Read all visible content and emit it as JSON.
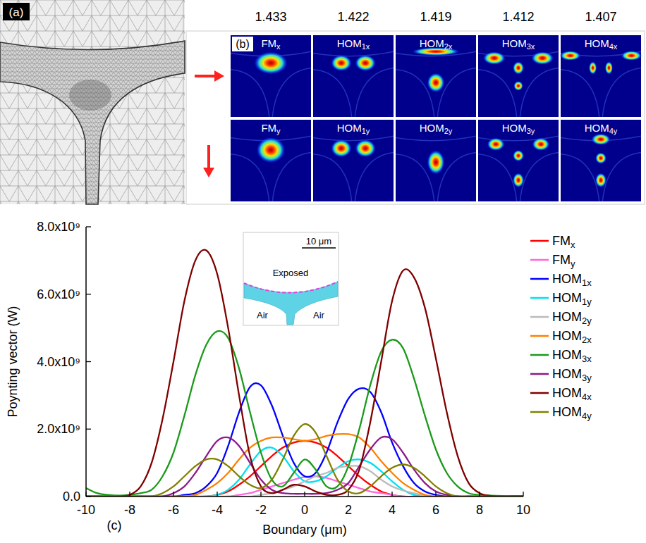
{
  "chart_data": {
    "type": "line",
    "xlabel": "Boundary (μm)",
    "ylabel": "Poynting vector (W)",
    "annotations": [
      "(c)",
      "10 μm",
      "Exposed",
      "Air",
      "Air"
    ],
    "x": [
      -10,
      -9.5,
      -9,
      -8.5,
      -8,
      -7.5,
      -7,
      -6.5,
      -6,
      -5.5,
      -5,
      -4.5,
      -4,
      -3.5,
      -3,
      -2.5,
      -2,
      -1.5,
      -1,
      -0.5,
      0,
      0.5,
      1,
      1.5,
      2,
      2.5,
      3,
      3.5,
      4,
      4.5,
      5,
      5.5,
      6,
      6.5,
      7,
      7.5,
      8,
      8.5,
      9,
      9.5,
      10
    ],
    "xlim": [
      -10,
      10
    ],
    "xticks": [
      -10,
      -8,
      -6,
      -4,
      -2,
      0,
      2,
      4,
      6,
      8,
      10
    ],
    "ylim": [
      0,
      8000000000.0
    ],
    "yticks": [
      {
        "value": 0,
        "label": "0.0"
      },
      {
        "value": 2000000000.0,
        "label": "2.0x10⁹"
      },
      {
        "value": 4000000000.0,
        "label": "4.0x10⁹"
      },
      {
        "value": 6000000000.0,
        "label": "6.0x10⁹"
      },
      {
        "value": 8000000000.0,
        "label": "8.0x10⁹"
      }
    ],
    "legend": "right",
    "series": [
      {
        "name": "FMx",
        "color": "#ff0000",
        "values": [
          0,
          0,
          0,
          0,
          0,
          0,
          0,
          0,
          0,
          0,
          0,
          0,
          50000000.0,
          150000000.0,
          350000000.0,
          600000000.0,
          900000000.0,
          1200000000.0,
          1450000000.0,
          1600000000.0,
          1650000000.0,
          1600000000.0,
          1450000000.0,
          1200000000.0,
          900000000.0,
          600000000.0,
          350000000.0,
          150000000.0,
          50000000.0,
          0,
          0,
          0,
          0,
          0,
          0,
          0,
          0,
          0,
          0,
          0,
          0
        ]
      },
      {
        "name": "FMy",
        "color": "#ff66dd",
        "values": [
          0,
          0,
          0,
          0,
          0,
          0,
          0,
          0,
          0,
          0,
          0,
          0,
          0,
          0,
          50000000.0,
          100000000.0,
          200000000.0,
          300000000.0,
          400000000.0,
          500000000.0,
          580000000.0,
          600000000.0,
          550000000.0,
          450000000.0,
          350000000.0,
          250000000.0,
          150000000.0,
          100000000.0,
          50000000.0,
          0,
          0,
          0,
          0,
          0,
          0,
          0,
          0,
          0,
          0,
          0,
          0
        ]
      },
      {
        "name": "HOM1x",
        "color": "#0000ff",
        "values": [
          0,
          0,
          0,
          0,
          0,
          0,
          0,
          0,
          0,
          50000000.0,
          100000000.0,
          300000000.0,
          700000000.0,
          1500000000.0,
          2500000000.0,
          3250000000.0,
          3300000000.0,
          2700000000.0,
          1800000000.0,
          1000000000.0,
          600000000.0,
          700000000.0,
          1300000000.0,
          2200000000.0,
          2900000000.0,
          3200000000.0,
          3100000000.0,
          2500000000.0,
          1600000000.0,
          900000000.0,
          400000000.0,
          150000000.0,
          50000000.0,
          0,
          0,
          0,
          0,
          0,
          0,
          0,
          0
        ]
      },
      {
        "name": "HOM1y",
        "color": "#00e0f0",
        "values": [
          0,
          0,
          0,
          0,
          0,
          0,
          0,
          0,
          0,
          0,
          0,
          0,
          50000000.0,
          200000000.0,
          500000000.0,
          950000000.0,
          1350000000.0,
          1450000000.0,
          1200000000.0,
          750000000.0,
          450000000.0,
          450000000.0,
          600000000.0,
          850000000.0,
          1050000000.0,
          1100000000.0,
          1000000000.0,
          750000000.0,
          450000000.0,
          200000000.0,
          50000000.0,
          0,
          0,
          0,
          0,
          0,
          0,
          0,
          0,
          0,
          0
        ]
      },
      {
        "name": "HOM2y",
        "color": "#bbbbbb",
        "values": [
          0,
          0,
          0,
          0,
          0,
          0,
          0,
          0,
          0,
          0,
          0,
          0,
          0,
          0,
          0,
          0,
          50000000.0,
          100000000.0,
          200000000.0,
          300000000.0,
          450000000.0,
          600000000.0,
          700000000.0,
          850000000.0,
          900000000.0,
          900000000.0,
          750000000.0,
          500000000.0,
          300000000.0,
          180000000.0,
          100000000.0,
          30000000.0,
          0,
          0,
          0,
          0,
          0,
          0,
          0,
          0,
          0
        ]
      },
      {
        "name": "HOM2x",
        "color": "#ff8000",
        "values": [
          0,
          0,
          0,
          0,
          0,
          0,
          0,
          0,
          0,
          0,
          50000000.0,
          200000000.0,
          400000000.0,
          700000000.0,
          1100000000.0,
          1450000000.0,
          1650000000.0,
          1750000000.0,
          1750000000.0,
          1700000000.0,
          1650000000.0,
          1700000000.0,
          1800000000.0,
          1850000000.0,
          1850000000.0,
          1750000000.0,
          1450000000.0,
          1050000000.0,
          700000000.0,
          400000000.0,
          200000000.0,
          50000000.0,
          0,
          0,
          0,
          0,
          0,
          0,
          0,
          0,
          0
        ]
      },
      {
        "name": "HOM3x",
        "color": "#1a9a1a",
        "values": [
          250000000.0,
          100000000.0,
          50000000.0,
          30000000.0,
          50000000.0,
          100000000.0,
          200000000.0,
          600000000.0,
          1300000000.0,
          2400000000.0,
          3600000000.0,
          4500000000.0,
          4900000000.0,
          4700000000.0,
          3800000000.0,
          2500000000.0,
          1300000000.0,
          500000000.0,
          300000000.0,
          700000000.0,
          1100000000.0,
          800000000.0,
          300000000.0,
          300000000.0,
          900000000.0,
          2000000000.0,
          3300000000.0,
          4300000000.0,
          4650000000.0,
          4400000000.0,
          3500000000.0,
          2400000000.0,
          1400000000.0,
          700000000.0,
          300000000.0,
          100000000.0,
          50000000.0,
          30000000.0,
          20000000.0,
          20000000.0,
          20000000.0
        ]
      },
      {
        "name": "HOM3y",
        "color": "#8b1a8b",
        "values": [
          0,
          0,
          0,
          0,
          0,
          0,
          0,
          0,
          100000000.0,
          300000000.0,
          700000000.0,
          1200000000.0,
          1650000000.0,
          1750000000.0,
          1500000000.0,
          1000000000.0,
          500000000.0,
          200000000.0,
          100000000.0,
          80000000.0,
          80000000.0,
          80000000.0,
          100000000.0,
          200000000.0,
          400000000.0,
          900000000.0,
          1400000000.0,
          1750000000.0,
          1700000000.0,
          1300000000.0,
          800000000.0,
          400000000.0,
          150000000.0,
          50000000.0,
          0,
          0,
          0,
          0,
          0,
          0,
          0
        ]
      },
      {
        "name": "HOM4x",
        "color": "#800000",
        "values": [
          0,
          0,
          0,
          0,
          50000000.0,
          300000000.0,
          1000000000.0,
          2300000000.0,
          4000000000.0,
          5800000000.0,
          7000000000.0,
          7300000000.0,
          6600000000.0,
          5000000000.0,
          3000000000.0,
          1200000000.0,
          300000000.0,
          100000000.0,
          200000000.0,
          350000000.0,
          300000000.0,
          150000000.0,
          50000000.0,
          50000000.0,
          200000000.0,
          800000000.0,
          2200000000.0,
          4000000000.0,
          5800000000.0,
          6700000000.0,
          6500000000.0,
          5600000000.0,
          4100000000.0,
          2500000000.0,
          1200000000.0,
          400000000.0,
          100000000.0,
          20000000.0,
          0,
          0,
          0
        ]
      },
      {
        "name": "HOM4y",
        "color": "#808000",
        "values": [
          0,
          0,
          0,
          0,
          0,
          0,
          0,
          100000000.0,
          300000000.0,
          600000000.0,
          900000000.0,
          1100000000.0,
          1100000000.0,
          900000000.0,
          600000000.0,
          350000000.0,
          250000000.0,
          500000000.0,
          1100000000.0,
          1800000000.0,
          2150000000.0,
          1900000000.0,
          1200000000.0,
          500000000.0,
          150000000.0,
          100000000.0,
          300000000.0,
          600000000.0,
          850000000.0,
          950000000.0,
          850000000.0,
          600000000.0,
          300000000.0,
          100000000.0,
          0,
          0,
          0,
          0,
          0,
          0,
          0
        ]
      }
    ]
  },
  "panels": {
    "a": {
      "label": "(a)"
    },
    "b": {
      "label": "(b)",
      "columns": [
        {
          "index": 1.433,
          "modes": [
            "FMx",
            "FMy"
          ]
        },
        {
          "index": 1.422,
          "modes": [
            "HOM1x",
            "HOM1y"
          ]
        },
        {
          "index": 1.419,
          "modes": [
            "HOM2x",
            "HOM2y"
          ]
        },
        {
          "index": 1.412,
          "modes": [
            "HOM3x",
            "HOM3y"
          ]
        },
        {
          "index": 1.407,
          "modes": [
            "HOM4x",
            "HOM4y"
          ]
        }
      ]
    }
  }
}
